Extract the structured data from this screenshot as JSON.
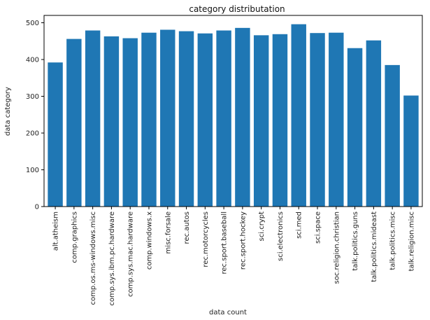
{
  "chart_data": {
    "type": "bar",
    "title": "category distributation",
    "xlabel": "data count",
    "ylabel": "data category",
    "categories": [
      "alt.atheism",
      "comp.graphics",
      "comp.os.ms-windows.misc",
      "comp.sys.ibm.pc.hardware",
      "comp.sys.mac.hardware",
      "comp.windows.x",
      "misc.forsale",
      "rec.autos",
      "rec.motorcycles",
      "rec.sport.baseball",
      "rec.sport.hockey",
      "sci.crypt",
      "sci.electronics",
      "sci.med",
      "sci.space",
      "soc.religion.christian",
      "talk.politics.guns",
      "talk.politics.mideast",
      "talk.politics.misc",
      "talk.religion.misc"
    ],
    "values": [
      392,
      456,
      479,
      463,
      458,
      473,
      481,
      477,
      471,
      479,
      486,
      466,
      469,
      496,
      472,
      473,
      431,
      452,
      385,
      302
    ],
    "ylim": [
      0,
      520
    ],
    "yticks": [
      0,
      100,
      200,
      300,
      400,
      500
    ],
    "bar_color": "#1f77b4",
    "grid": false,
    "legend": "none"
  }
}
